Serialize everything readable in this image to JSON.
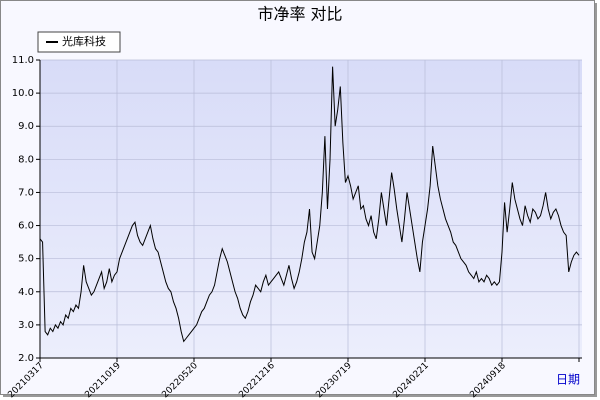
{
  "chart_data": {
    "type": "line",
    "title": "市净率  对比",
    "xlabel": "日期",
    "categories": [
      "20210317",
      null,
      null,
      null,
      null,
      null,
      null,
      null,
      null,
      null,
      null,
      null,
      null,
      null,
      null,
      null,
      null,
      null,
      null,
      null,
      null,
      null,
      null,
      null,
      null,
      null,
      null,
      null,
      null,
      null,
      "20211019",
      null,
      null,
      null,
      null,
      null,
      null,
      null,
      null,
      null,
      null,
      null,
      null,
      null,
      null,
      null,
      null,
      null,
      null,
      null,
      null,
      null,
      null,
      null,
      null,
      null,
      null,
      null,
      null,
      null,
      "20220520",
      null,
      null,
      null,
      null,
      null,
      null,
      null,
      null,
      null,
      null,
      null,
      null,
      null,
      null,
      null,
      null,
      null,
      null,
      null,
      null,
      null,
      null,
      null,
      null,
      null,
      null,
      null,
      null,
      null,
      "20221216",
      null,
      null,
      null,
      null,
      null,
      null,
      null,
      null,
      null,
      null,
      null,
      null,
      null,
      null,
      null,
      null,
      null,
      null,
      null,
      null,
      null,
      null,
      null,
      null,
      null,
      null,
      null,
      null,
      null,
      "20230719",
      null,
      null,
      null,
      null,
      null,
      null,
      null,
      null,
      null,
      null,
      null,
      null,
      null,
      null,
      null,
      null,
      null,
      null,
      null,
      null,
      null,
      null,
      null,
      null,
      null,
      null,
      null,
      null,
      null,
      "20240221",
      null,
      null,
      null,
      null,
      null,
      null,
      null,
      null,
      null,
      null,
      null,
      null,
      null,
      null,
      null,
      null,
      null,
      null,
      null,
      null,
      null,
      null,
      null,
      null,
      null,
      null,
      null,
      null,
      null,
      "20240918",
      null,
      null,
      null,
      null,
      null,
      null,
      null,
      null,
      null,
      null,
      null,
      null,
      null,
      null,
      null,
      null,
      null,
      null,
      null,
      null,
      null,
      null,
      null,
      null,
      null,
      null,
      null,
      null,
      null,
      null
    ],
    "series": [
      {
        "name": "光库科技",
        "color": "#000000",
        "values": [
          5.6,
          5.5,
          2.8,
          2.7,
          2.9,
          2.8,
          3.0,
          2.9,
          3.1,
          3.0,
          3.3,
          3.2,
          3.5,
          3.4,
          3.6,
          3.5,
          4.0,
          4.8,
          4.3,
          4.1,
          3.9,
          4.0,
          4.2,
          4.4,
          4.6,
          4.1,
          4.3,
          4.7,
          4.3,
          4.5,
          4.6,
          5.0,
          5.2,
          5.4,
          5.6,
          5.8,
          6.0,
          6.1,
          5.7,
          5.5,
          5.4,
          5.6,
          5.8,
          6.0,
          5.6,
          5.3,
          5.2,
          4.9,
          4.6,
          4.3,
          4.1,
          4.0,
          3.7,
          3.5,
          3.2,
          2.8,
          2.5,
          2.6,
          2.7,
          2.8,
          2.9,
          3.0,
          3.2,
          3.4,
          3.5,
          3.7,
          3.9,
          4.0,
          4.2,
          4.6,
          5.0,
          5.3,
          5.1,
          4.9,
          4.6,
          4.3,
          4.0,
          3.8,
          3.5,
          3.3,
          3.2,
          3.4,
          3.7,
          3.9,
          4.2,
          4.1,
          4.0,
          4.3,
          4.5,
          4.2,
          4.3,
          4.4,
          4.5,
          4.6,
          4.4,
          4.2,
          4.5,
          4.8,
          4.4,
          4.1,
          4.3,
          4.6,
          5.0,
          5.5,
          5.8,
          6.5,
          5.2,
          5.0,
          5.5,
          6.0,
          7.0,
          8.7,
          6.5,
          8.0,
          10.8,
          9.0,
          9.5,
          10.2,
          8.5,
          7.3,
          7.5,
          7.2,
          6.8,
          7.0,
          7.2,
          6.5,
          6.6,
          6.2,
          6.0,
          6.3,
          5.8,
          5.6,
          6.2,
          7.0,
          6.5,
          6.0,
          6.8,
          7.6,
          7.1,
          6.5,
          6.0,
          5.5,
          6.2,
          7.0,
          6.5,
          6.0,
          5.5,
          5.0,
          4.6,
          5.5,
          6.0,
          6.5,
          7.2,
          8.4,
          7.8,
          7.2,
          6.8,
          6.5,
          6.2,
          6.0,
          5.8,
          5.5,
          5.4,
          5.2,
          5.0,
          4.9,
          4.8,
          4.6,
          4.5,
          4.4,
          4.6,
          4.3,
          4.4,
          4.3,
          4.5,
          4.4,
          4.2,
          4.3,
          4.2,
          4.3,
          5.2,
          6.7,
          5.8,
          6.5,
          7.3,
          6.8,
          6.5,
          6.2,
          6.0,
          6.6,
          6.3,
          6.1,
          6.5,
          6.4,
          6.2,
          6.3,
          6.6,
          7.0,
          6.5,
          6.2,
          6.4,
          6.5,
          6.3,
          6.0,
          5.8,
          5.7,
          4.6,
          4.9,
          5.1,
          5.2,
          5.1
        ]
      }
    ],
    "ylim": [
      2.0,
      11.0
    ],
    "yticks": [
      {
        "value": 2,
        "label": "2.0"
      },
      {
        "value": 3,
        "label": "3.0"
      },
      {
        "value": 4,
        "label": "4.0"
      },
      {
        "value": 5,
        "label": "5.0"
      },
      {
        "value": 6,
        "label": "6.0"
      },
      {
        "value": 7,
        "label": "7.0"
      },
      {
        "value": 8,
        "label": "8.0"
      },
      {
        "value": 9,
        "label": "9.0"
      },
      {
        "value": 10,
        "label": "10.0"
      },
      {
        "value": 11,
        "label": "11.0"
      }
    ],
    "grid": true
  }
}
